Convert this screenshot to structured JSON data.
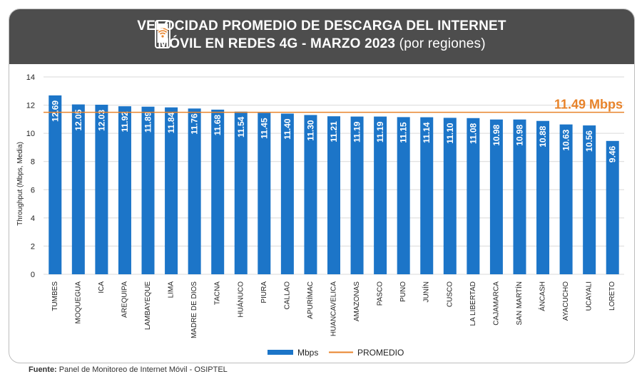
{
  "header": {
    "title_line1": "VELOCIDAD PROMEDIO DE DESCARGA DEL INTERNET",
    "title_line2": "MÓVIL EN REDES 4G - MARZO 2023",
    "title_suffix": "(por regiones)",
    "icon": "mobile-phone-wifi-icon"
  },
  "chart_data": {
    "type": "bar",
    "title": "VELOCIDAD PROMEDIO DE DESCARGA DEL INTERNET MÓVIL EN REDES 4G - MARZO 2023 (por regiones)",
    "ylabel": "Throughput (Mbps, Media)",
    "ylim": [
      0,
      14
    ],
    "yticks": [
      0,
      2,
      4,
      6,
      8,
      10,
      12,
      14
    ],
    "grid": true,
    "legend_placement": "bottom",
    "categories": [
      "TUMBES",
      "MOQUEGUA",
      "ICA",
      "AREQUIPA",
      "LAMBAYEQUE",
      "LIMA",
      "MADRE DE DIOS",
      "TACNA",
      "HUÁNUCO",
      "PIURA",
      "CALLAO",
      "APURÍMAC",
      "HUANCAVELICA",
      "AMAZONAS",
      "PASCO",
      "PUNO",
      "JUNÍN",
      "CUSCO",
      "LA LIBERTAD",
      "CAJAMARCA",
      "SAN MARTÍN",
      "ÁNCASH",
      "AYACUCHO",
      "UCAYALI",
      "LORETO"
    ],
    "series": [
      {
        "name": "Mbps",
        "color": "#1c75c8",
        "values": [
          12.69,
          12.05,
          12.03,
          11.92,
          11.89,
          11.84,
          11.76,
          11.68,
          11.54,
          11.45,
          11.4,
          11.3,
          11.21,
          11.19,
          11.19,
          11.15,
          11.14,
          11.1,
          11.08,
          10.98,
          10.98,
          10.88,
          10.63,
          10.56,
          9.46
        ],
        "labels": [
          "12.69",
          "12.05",
          "12.03",
          "11.92",
          "11.89",
          "11.84",
          "11.76",
          "11.68",
          "11.54",
          "11.45",
          "11.40",
          "11.30",
          "11.21",
          "11.19",
          "11.19",
          "11.15",
          "11.14",
          "11.10",
          "11.08",
          "10.98",
          "10.98",
          "10.88",
          "10.63",
          "10.56",
          "9.46"
        ]
      }
    ],
    "average": {
      "name": "PROMEDIO",
      "value": 11.49,
      "label": "11.49 Mbps",
      "color": "#e8832a"
    }
  },
  "footer": {
    "source_label": "Fuente:",
    "source_text": " Panel de Monitoreo de Internet Móvil - OSIPTEL"
  }
}
